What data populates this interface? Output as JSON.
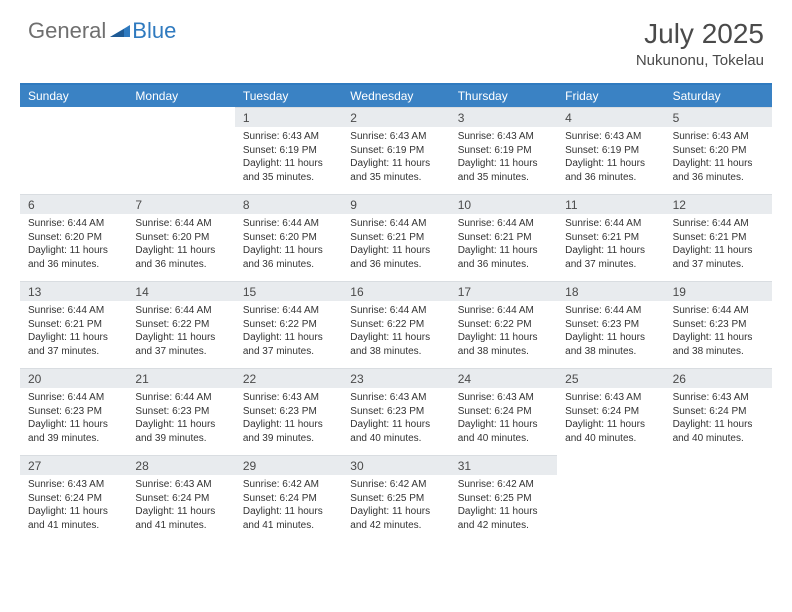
{
  "logo": {
    "text1": "General",
    "text2": "Blue"
  },
  "title": "July 2025",
  "location": "Nukunonu, Tokelau",
  "colors": {
    "header_bg": "#3a82c4",
    "border_top": "#2f7abf",
    "daynum_bg": "#e8ebee",
    "text": "#333333",
    "header_text": "#ffffff",
    "title_text": "#4a4a4a",
    "logo_gray": "#6f6f6f",
    "logo_blue": "#2f7abf"
  },
  "day_names": [
    "Sunday",
    "Monday",
    "Tuesday",
    "Wednesday",
    "Thursday",
    "Friday",
    "Saturday"
  ],
  "weeks": [
    [
      null,
      null,
      {
        "n": "1",
        "sr": "6:43 AM",
        "ss": "6:19 PM",
        "dl": "11 hours and 35 minutes."
      },
      {
        "n": "2",
        "sr": "6:43 AM",
        "ss": "6:19 PM",
        "dl": "11 hours and 35 minutes."
      },
      {
        "n": "3",
        "sr": "6:43 AM",
        "ss": "6:19 PM",
        "dl": "11 hours and 35 minutes."
      },
      {
        "n": "4",
        "sr": "6:43 AM",
        "ss": "6:19 PM",
        "dl": "11 hours and 36 minutes."
      },
      {
        "n": "5",
        "sr": "6:43 AM",
        "ss": "6:20 PM",
        "dl": "11 hours and 36 minutes."
      }
    ],
    [
      {
        "n": "6",
        "sr": "6:44 AM",
        "ss": "6:20 PM",
        "dl": "11 hours and 36 minutes."
      },
      {
        "n": "7",
        "sr": "6:44 AM",
        "ss": "6:20 PM",
        "dl": "11 hours and 36 minutes."
      },
      {
        "n": "8",
        "sr": "6:44 AM",
        "ss": "6:20 PM",
        "dl": "11 hours and 36 minutes."
      },
      {
        "n": "9",
        "sr": "6:44 AM",
        "ss": "6:21 PM",
        "dl": "11 hours and 36 minutes."
      },
      {
        "n": "10",
        "sr": "6:44 AM",
        "ss": "6:21 PM",
        "dl": "11 hours and 36 minutes."
      },
      {
        "n": "11",
        "sr": "6:44 AM",
        "ss": "6:21 PM",
        "dl": "11 hours and 37 minutes."
      },
      {
        "n": "12",
        "sr": "6:44 AM",
        "ss": "6:21 PM",
        "dl": "11 hours and 37 minutes."
      }
    ],
    [
      {
        "n": "13",
        "sr": "6:44 AM",
        "ss": "6:21 PM",
        "dl": "11 hours and 37 minutes."
      },
      {
        "n": "14",
        "sr": "6:44 AM",
        "ss": "6:22 PM",
        "dl": "11 hours and 37 minutes."
      },
      {
        "n": "15",
        "sr": "6:44 AM",
        "ss": "6:22 PM",
        "dl": "11 hours and 37 minutes."
      },
      {
        "n": "16",
        "sr": "6:44 AM",
        "ss": "6:22 PM",
        "dl": "11 hours and 38 minutes."
      },
      {
        "n": "17",
        "sr": "6:44 AM",
        "ss": "6:22 PM",
        "dl": "11 hours and 38 minutes."
      },
      {
        "n": "18",
        "sr": "6:44 AM",
        "ss": "6:23 PM",
        "dl": "11 hours and 38 minutes."
      },
      {
        "n": "19",
        "sr": "6:44 AM",
        "ss": "6:23 PM",
        "dl": "11 hours and 38 minutes."
      }
    ],
    [
      {
        "n": "20",
        "sr": "6:44 AM",
        "ss": "6:23 PM",
        "dl": "11 hours and 39 minutes."
      },
      {
        "n": "21",
        "sr": "6:44 AM",
        "ss": "6:23 PM",
        "dl": "11 hours and 39 minutes."
      },
      {
        "n": "22",
        "sr": "6:43 AM",
        "ss": "6:23 PM",
        "dl": "11 hours and 39 minutes."
      },
      {
        "n": "23",
        "sr": "6:43 AM",
        "ss": "6:23 PM",
        "dl": "11 hours and 40 minutes."
      },
      {
        "n": "24",
        "sr": "6:43 AM",
        "ss": "6:24 PM",
        "dl": "11 hours and 40 minutes."
      },
      {
        "n": "25",
        "sr": "6:43 AM",
        "ss": "6:24 PM",
        "dl": "11 hours and 40 minutes."
      },
      {
        "n": "26",
        "sr": "6:43 AM",
        "ss": "6:24 PM",
        "dl": "11 hours and 40 minutes."
      }
    ],
    [
      {
        "n": "27",
        "sr": "6:43 AM",
        "ss": "6:24 PM",
        "dl": "11 hours and 41 minutes."
      },
      {
        "n": "28",
        "sr": "6:43 AM",
        "ss": "6:24 PM",
        "dl": "11 hours and 41 minutes."
      },
      {
        "n": "29",
        "sr": "6:42 AM",
        "ss": "6:24 PM",
        "dl": "11 hours and 41 minutes."
      },
      {
        "n": "30",
        "sr": "6:42 AM",
        "ss": "6:25 PM",
        "dl": "11 hours and 42 minutes."
      },
      {
        "n": "31",
        "sr": "6:42 AM",
        "ss": "6:25 PM",
        "dl": "11 hours and 42 minutes."
      },
      null,
      null
    ]
  ],
  "labels": {
    "sunrise": "Sunrise:",
    "sunset": "Sunset:",
    "daylight": "Daylight:"
  }
}
